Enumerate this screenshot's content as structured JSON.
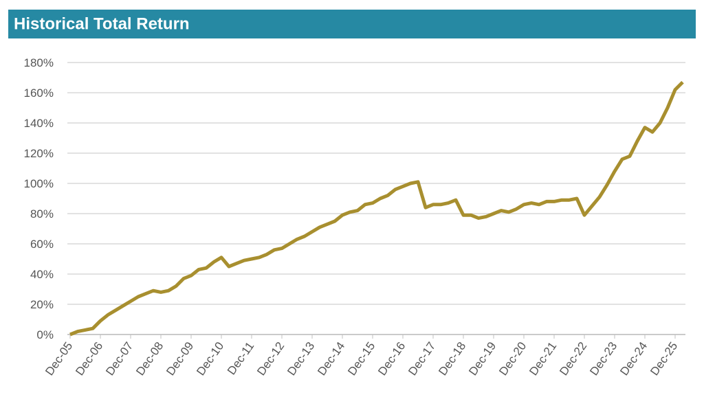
{
  "chart_data": {
    "type": "line",
    "title": "Historical Total Return",
    "categories": [
      "Dec-05",
      null,
      null,
      null,
      "Dec-06",
      null,
      null,
      null,
      "Dec-07",
      null,
      null,
      null,
      "Dec-08",
      null,
      null,
      null,
      "Dec-09",
      null,
      null,
      null,
      "Dec-10",
      null,
      null,
      null,
      "Dec-11",
      null,
      null,
      null,
      "Dec-12",
      null,
      null,
      null,
      "Dec-13",
      null,
      null,
      null,
      "Dec-14",
      null,
      null,
      null,
      "Dec-15",
      null,
      null,
      null,
      "Dec-16",
      null,
      null,
      null,
      "Dec-17",
      null,
      null,
      null,
      "Dec-18",
      null,
      null,
      null,
      "Dec-19",
      null,
      null,
      null,
      "Dec-20",
      null,
      null,
      null,
      "Dec-21",
      null,
      null,
      null,
      "Dec-22",
      null,
      null,
      null,
      "Dec-23",
      null,
      null,
      null,
      "Dec-24",
      null,
      null,
      null,
      "Dec-25",
      null
    ],
    "series": [
      {
        "name": "Total Return",
        "color": "#a88f2f",
        "values": [
          0,
          2,
          3,
          4,
          9,
          13,
          16,
          19,
          22,
          25,
          27,
          29,
          28,
          29,
          32,
          37,
          39,
          43,
          44,
          48,
          51,
          45,
          47,
          49,
          50,
          51,
          53,
          56,
          57,
          60,
          63,
          65,
          68,
          71,
          73,
          75,
          79,
          81,
          82,
          86,
          87,
          90,
          92,
          96,
          98,
          100,
          101,
          84,
          86,
          86,
          87,
          89,
          79,
          79,
          77,
          78,
          80,
          82,
          81,
          83,
          86,
          87,
          86,
          88,
          88,
          89,
          89,
          90,
          79,
          85,
          91,
          99,
          108,
          116,
          118,
          128,
          137,
          134,
          140,
          150,
          162,
          167
        ]
      }
    ],
    "ylim": [
      0,
      180
    ],
    "yticks": [
      {
        "value": 0,
        "label": "0%"
      },
      {
        "value": 20,
        "label": "20%"
      },
      {
        "value": 40,
        "label": "40%"
      },
      {
        "value": 60,
        "label": "60%"
      },
      {
        "value": 80,
        "label": "80%"
      },
      {
        "value": 100,
        "label": "100%"
      },
      {
        "value": 120,
        "label": "120%"
      },
      {
        "value": 140,
        "label": "140%"
      },
      {
        "value": 160,
        "label": "160%"
      },
      {
        "value": 180,
        "label": "180%"
      }
    ],
    "grid": true
  }
}
